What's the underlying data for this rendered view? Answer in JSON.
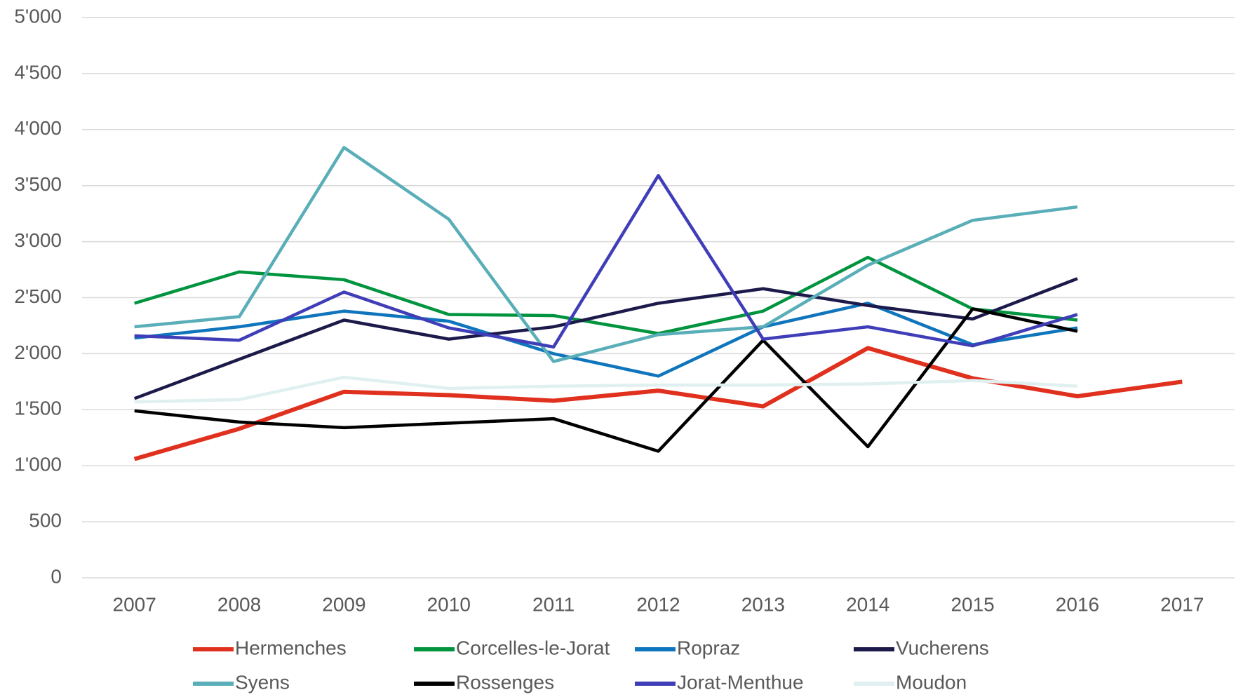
{
  "chart_data": {
    "type": "line",
    "categories": [
      "2007",
      "2008",
      "2009",
      "2010",
      "2011",
      "2012",
      "2013",
      "2014",
      "2015",
      "2016",
      "2017"
    ],
    "series": [
      {
        "name": "Hermenches",
        "color": "#e0301e",
        "values": [
          1060,
          1330,
          1660,
          1630,
          1580,
          1670,
          1530,
          2050,
          1780,
          1620,
          1750
        ]
      },
      {
        "name": "Corcelles-le-Jorat",
        "color": "#00943f",
        "values": [
          2450,
          2730,
          2660,
          2350,
          2340,
          2180,
          2380,
          2860,
          2400,
          2300,
          null
        ]
      },
      {
        "name": "Ropraz",
        "color": "#0f75bc",
        "values": [
          2140,
          2240,
          2380,
          2290,
          2000,
          1800,
          2240,
          2450,
          2080,
          2230,
          null
        ]
      },
      {
        "name": "Vucherens",
        "color": "#1c1a4a",
        "values": [
          1600,
          1950,
          2300,
          2130,
          2240,
          2450,
          2580,
          2430,
          2310,
          2670,
          null
        ]
      },
      {
        "name": "Syens",
        "color": "#5aaeb8",
        "values": [
          2240,
          2330,
          3840,
          3200,
          1930,
          2170,
          2240,
          2790,
          3190,
          3310,
          null
        ]
      },
      {
        "name": "Rossenges",
        "color": "#000000",
        "values": [
          1490,
          1390,
          1340,
          1380,
          1420,
          1130,
          2120,
          1170,
          2400,
          2200,
          null
        ]
      },
      {
        "name": "Jorat-Menthue",
        "color": "#3f3eb8",
        "values": [
          2160,
          2120,
          2550,
          2230,
          2060,
          3590,
          2130,
          2240,
          2070,
          2350,
          null
        ]
      },
      {
        "name": "Moudon",
        "color": "#e0f0f0",
        "values": [
          1570,
          1590,
          1790,
          1690,
          1710,
          1720,
          1720,
          1730,
          1760,
          1710,
          null
        ]
      }
    ],
    "ylim": [
      0,
      5000
    ],
    "yticks": [
      0,
      500,
      {
        "value": 1000,
        "label": "1'000"
      },
      {
        "value": 1500,
        "label": "1'500"
      },
      {
        "value": 2000,
        "label": "2'000"
      },
      {
        "value": 2500,
        "label": "2'500"
      },
      {
        "value": 3000,
        "label": "3'000"
      },
      {
        "value": 3500,
        "label": "3'500"
      },
      {
        "value": 4000,
        "label": "4'000"
      },
      {
        "value": 4500,
        "label": "4'500"
      },
      {
        "value": 5000,
        "label": "5'000"
      }
    ],
    "grid": true,
    "legend": "bottom"
  }
}
